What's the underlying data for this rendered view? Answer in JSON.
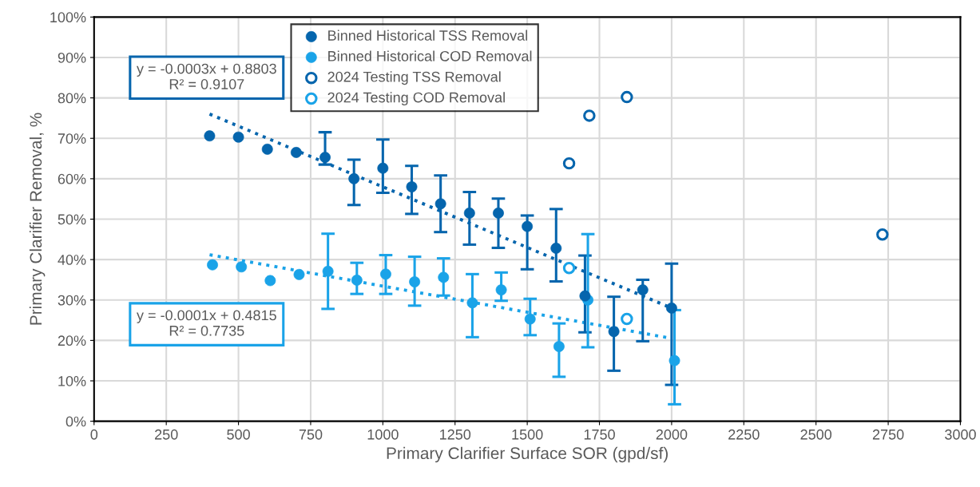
{
  "chart_data": {
    "type": "scatter",
    "xlabel": "Primary Clarifier Surface SOR (gpd/sf)",
    "ylabel": "Primary Clarifier Removal, %",
    "xlim": [
      0,
      3000
    ],
    "xticks": [
      0,
      250,
      500,
      750,
      1000,
      1250,
      1500,
      1750,
      2000,
      2250,
      2500,
      2750,
      3000
    ],
    "ylim": [
      0,
      100
    ],
    "yticks": [
      {
        "value": 0,
        "label": "0%"
      },
      {
        "value": 10,
        "label": "10%"
      },
      {
        "value": 20,
        "label": "20%"
      },
      {
        "value": 30,
        "label": "30%"
      },
      {
        "value": 40,
        "label": "40%"
      },
      {
        "value": 50,
        "label": "50%"
      },
      {
        "value": 60,
        "label": "60%"
      },
      {
        "value": 70,
        "label": "70%"
      },
      {
        "value": 80,
        "label": "80%"
      },
      {
        "value": 90,
        "label": "90%"
      },
      {
        "value": 100,
        "label": "100%"
      }
    ],
    "grid": true,
    "legend": "top",
    "marker": "circle",
    "series": [
      {
        "name": "Binned Historical TSS Removal",
        "color": "#0565ad",
        "x": [
          400,
          500,
          600,
          700,
          800,
          900,
          1000,
          1100,
          1200,
          1300,
          1400,
          1500,
          1600,
          1700,
          1800,
          1900,
          2000
        ],
        "values": [
          70.6,
          70.3,
          67.3,
          66.5,
          65.3,
          60,
          62.6,
          58,
          53.8,
          51.5,
          51.5,
          48.2,
          42.8,
          31,
          22.2,
          32.5,
          28
        ],
        "errors": [
          null,
          null,
          null,
          null,
          [
            63.5,
            71.5
          ],
          [
            53.5,
            64.7
          ],
          [
            56.5,
            69.7
          ],
          [
            51.3,
            63.2
          ],
          [
            46.8,
            60.8
          ],
          [
            43.7,
            56.7
          ],
          [
            42.9,
            55.1
          ],
          [
            37.6,
            50.9
          ],
          [
            34.6,
            52.5
          ],
          [
            22,
            41
          ],
          [
            12.5,
            30.8
          ],
          [
            19.8,
            35
          ],
          [
            9,
            39
          ]
        ]
      },
      {
        "name": "Binned Historical COD Removal",
        "color": "#1aa3e8",
        "x": [
          410,
          510,
          610,
          710,
          810,
          910,
          1010,
          1110,
          1210,
          1310,
          1410,
          1510,
          1610,
          1710,
          2010
        ],
        "values": [
          38.7,
          38.2,
          34.8,
          36.3,
          37.1,
          34.9,
          36.4,
          34.5,
          35.6,
          29.3,
          32.5,
          25.3,
          18.5,
          30,
          15
        ],
        "errors": [
          null,
          null,
          null,
          null,
          [
            27.8,
            46.4
          ],
          [
            31.5,
            39.2
          ],
          [
            31.5,
            41.1
          ],
          [
            28.6,
            40.7
          ],
          [
            31.1,
            40.3
          ],
          [
            20.8,
            36.4
          ],
          [
            29.8,
            36.8
          ],
          [
            21.3,
            30.3
          ],
          [
            11,
            24.2
          ],
          [
            18.3,
            46.3
          ],
          [
            4.2,
            27.5
          ]
        ]
      },
      {
        "name": "2024 Testing TSS Removal",
        "color": "#0565ad",
        "x": [
          1645,
          1715,
          1845,
          2730
        ],
        "values": [
          63.8,
          75.6,
          80.2,
          46.2
        ]
      },
      {
        "name": "2024 Testing COD Removal",
        "color": "#1aa3e8",
        "x": [
          1645,
          1845
        ],
        "values": [
          37.9,
          25.3
        ]
      },
      {
        "type": "line",
        "color": "#0565ad",
        "x": [
          400,
          2000
        ],
        "values": [
          76,
          28
        ],
        "line_style": "dotted",
        "marker": "none"
      },
      {
        "type": "line",
        "color": "#1aa3e8",
        "x": [
          400,
          2000
        ],
        "values": [
          41.2,
          20.5
        ],
        "line_style": "dotted",
        "marker": "none"
      }
    ],
    "annotations": [
      "y = -0.0003x + 0.8803\nR² = 0.9107",
      "y = -0.0001x + 0.4815\nR² = 0.7735"
    ]
  }
}
